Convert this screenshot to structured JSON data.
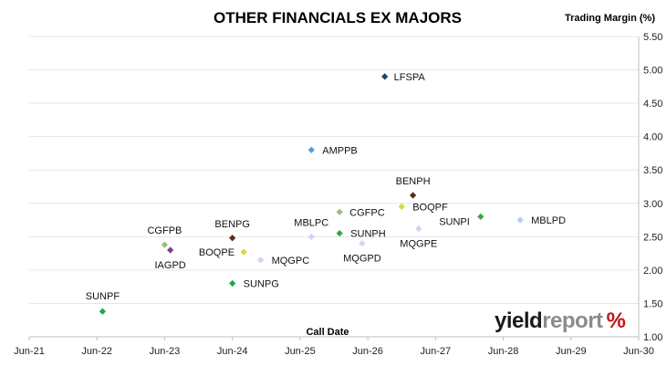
{
  "chart_data": {
    "type": "scatter",
    "title": "OTHER FINANCIALS EX MAJORS",
    "ylabel": "Trading Margin (%)",
    "xlabel": "Call Date",
    "x_ticks": [
      "Jun-21",
      "Jun-22",
      "Jun-23",
      "Jun-24",
      "Jun-25",
      "Jun-26",
      "Jun-27",
      "Jun-28",
      "Jun-29",
      "Jun-30"
    ],
    "xlim": [
      "2021-06",
      "2030-06"
    ],
    "ylim": [
      1.0,
      5.5
    ],
    "y_ticks": [
      "1.00",
      "1.50",
      "2.00",
      "2.50",
      "3.00",
      "3.50",
      "4.00",
      "4.50",
      "5.00",
      "5.50"
    ],
    "grid": "horizontal",
    "points": [
      {
        "label": "LFSPA",
        "x": "2026-09",
        "y": 4.9,
        "color": "#1f3f6e"
      },
      {
        "label": "AMPPB",
        "x": "2025-08",
        "y": 3.8,
        "color": "#5b9bd5"
      },
      {
        "label": "BENPH",
        "x": "2027-02",
        "y": 3.12,
        "color": "#5a2a1f"
      },
      {
        "label": "BOQPF",
        "x": "2026-12",
        "y": 2.95,
        "color": "#d9d93a"
      },
      {
        "label": "CGFPC",
        "x": "2026-01",
        "y": 2.87,
        "color": "#9bbb82"
      },
      {
        "label": "SUNPI",
        "x": "2028-02",
        "y": 2.8,
        "color": "#3aa63a"
      },
      {
        "label": "MBLPD",
        "x": "2028-09",
        "y": 2.75,
        "color": "#b7cde8"
      },
      {
        "label": "MQGPE",
        "x": "2027-03",
        "y": 2.62,
        "color": "#c9d8ee"
      },
      {
        "label": "SUNPH",
        "x": "2026-01",
        "y": 2.55,
        "color": "#3aa63a"
      },
      {
        "label": "MBLPC",
        "x": "2025-08",
        "y": 2.5,
        "color": "#c9d8ee"
      },
      {
        "label": "MQGPD",
        "x": "2026-05",
        "y": 2.4,
        "color": "#c9d8ee"
      },
      {
        "label": "BENPG",
        "x": "2024-06",
        "y": 2.48,
        "color": "#5a2a1f"
      },
      {
        "label": "CGFPB",
        "x": "2023-06",
        "y": 2.38,
        "color": "#9bbb82"
      },
      {
        "label": "IAGPD",
        "x": "2023-07",
        "y": 2.3,
        "color": "#7b3f8c"
      },
      {
        "label": "BOQPE",
        "x": "2024-08",
        "y": 2.27,
        "color": "#d9d93a"
      },
      {
        "label": "MQGPC",
        "x": "2024-11",
        "y": 2.15,
        "color": "#c9d8ee"
      },
      {
        "label": "SUNPG",
        "x": "2024-06",
        "y": 1.8,
        "color": "#1aa84a"
      },
      {
        "label": "SUNPF",
        "x": "2022-07",
        "y": 1.38,
        "color": "#1aa84a"
      }
    ]
  },
  "logo": {
    "yield": "yield",
    "report": "report",
    "pct": "%"
  }
}
